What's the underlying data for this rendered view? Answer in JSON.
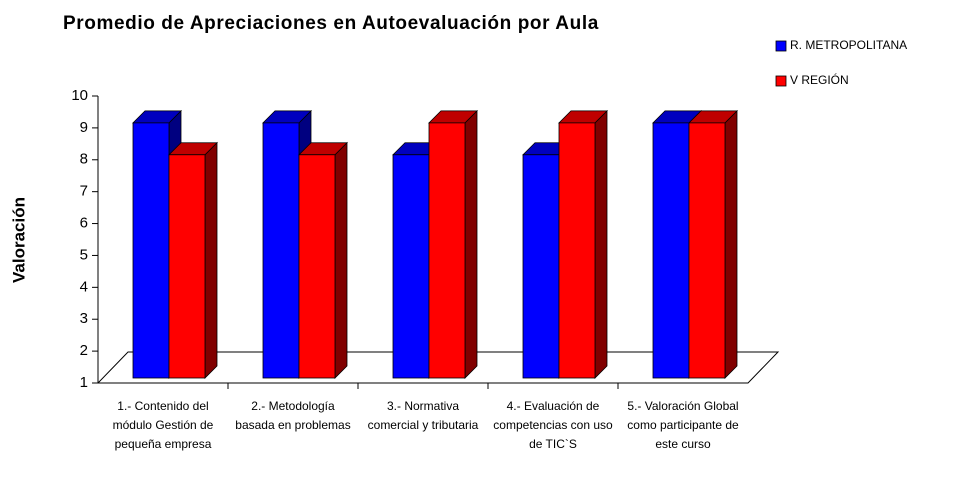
{
  "chart_data": {
    "type": "bar3d",
    "title": "Promedio de Apreciaciones en Autoevaluación por Aula",
    "y_label": "Valoración",
    "categories": [
      "1.- Contenido del módulo Gestión de pequeña empresa",
      "2.- Metodología basada en problemas",
      "3.- Normativa comercial y tributaria",
      "4.- Evaluación de competencias con uso de TIC`S",
      "5.- Valoración Global como participante de este curso"
    ],
    "series": [
      {
        "name": "R. METROPOLITANA",
        "color": "#0000ff",
        "values": [
          9,
          9,
          8,
          8,
          9
        ]
      },
      {
        "name": "V REGIÓN",
        "color": "#ff0000",
        "values": [
          8,
          8,
          9,
          9,
          9
        ]
      }
    ],
    "ylim": [
      1,
      10
    ],
    "yticks": [
      1,
      2,
      3,
      4,
      5,
      6,
      7,
      8,
      9,
      10
    ],
    "legend": "top-right",
    "grid": false
  }
}
